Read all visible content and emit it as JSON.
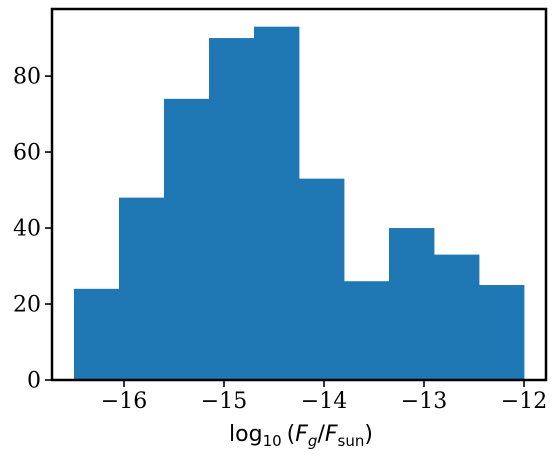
{
  "chart_data": {
    "type": "bar",
    "title": "",
    "xlabel": {
      "base": "log",
      "base_sub": "10",
      "open": "(",
      "num": "F",
      "num_sub": "g",
      "slash": "/",
      "den": "F",
      "den_sub": "sun",
      "close": ")"
    },
    "ylabel": "",
    "bins": [
      {
        "x0": -16.5,
        "x1": -16.05,
        "count": 24
      },
      {
        "x0": -16.05,
        "x1": -15.6,
        "count": 48
      },
      {
        "x0": -15.6,
        "x1": -15.15,
        "count": 74
      },
      {
        "x0": -15.15,
        "x1": -14.7,
        "count": 90
      },
      {
        "x0": -14.7,
        "x1": -14.25,
        "count": 93
      },
      {
        "x0": -14.25,
        "x1": -13.8,
        "count": 53
      },
      {
        "x0": -13.8,
        "x1": -13.35,
        "count": 26
      },
      {
        "x0": -13.35,
        "x1": -12.9,
        "count": 40
      },
      {
        "x0": -12.9,
        "x1": -12.45,
        "count": 33
      },
      {
        "x0": -12.45,
        "x1": -12.0,
        "count": 25
      }
    ],
    "xlim": [
      -16.72,
      -11.78
    ],
    "ylim": [
      0,
      97.65
    ],
    "xticks": [
      -16,
      -15,
      -14,
      -13,
      -12
    ],
    "xtick_labels": [
      "−16",
      "−15",
      "−14",
      "−13",
      "−12"
    ],
    "yticks": [
      0,
      20,
      40,
      60,
      80
    ],
    "ytick_labels": [
      "0",
      "20",
      "40",
      "60",
      "80"
    ],
    "grid": false,
    "colors": {
      "bar": "#1f77b4",
      "axes": "#000000",
      "background": "#ffffff"
    }
  }
}
